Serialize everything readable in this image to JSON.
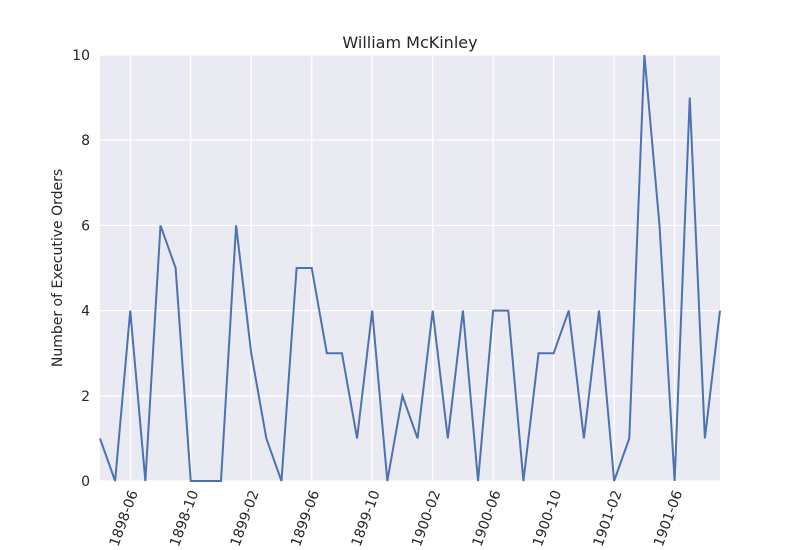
{
  "chart_data": {
    "type": "line",
    "title": "William McKinley",
    "xlabel": "",
    "ylabel": "Number of Executive Orders",
    "x": [
      "1898-04",
      "1898-05",
      "1898-06",
      "1898-07",
      "1898-08",
      "1898-09",
      "1898-10",
      "1898-11",
      "1898-12",
      "1899-01",
      "1899-02",
      "1899-03",
      "1899-04",
      "1899-05",
      "1899-06",
      "1899-07",
      "1899-08",
      "1899-09",
      "1899-10",
      "1899-11",
      "1899-12",
      "1900-01",
      "1900-02",
      "1900-03",
      "1900-04",
      "1900-05",
      "1900-06",
      "1900-07",
      "1900-08",
      "1900-09",
      "1900-10",
      "1900-11",
      "1900-12",
      "1901-01",
      "1901-02",
      "1901-03",
      "1901-04",
      "1901-05",
      "1901-06",
      "1901-07",
      "1901-08",
      "1901-09"
    ],
    "series": [
      {
        "values": [
          1,
          0,
          4,
          0,
          6,
          5,
          0,
          0,
          0,
          6,
          3,
          1,
          0,
          5,
          5,
          3,
          3,
          1,
          4,
          0,
          2,
          1,
          4,
          1,
          4,
          0,
          4,
          4,
          0,
          3,
          3,
          4,
          1,
          4,
          0,
          1,
          10,
          6,
          0,
          9,
          1,
          4
        ],
        "color": "#4c72b0"
      }
    ],
    "xticks": [
      "1898-06",
      "1898-10",
      "1899-02",
      "1899-06",
      "1899-10",
      "1900-02",
      "1900-06",
      "1900-10",
      "1901-02",
      "1901-06"
    ],
    "yticks": [
      "0",
      "2",
      "4",
      "6",
      "8",
      "10"
    ],
    "ylim": [
      0,
      10
    ],
    "xlim": [
      "1898-04",
      "1901-09"
    ],
    "grid": true,
    "style": {
      "background": "#eaeaf2",
      "gridcolor": "#ffffff"
    }
  }
}
